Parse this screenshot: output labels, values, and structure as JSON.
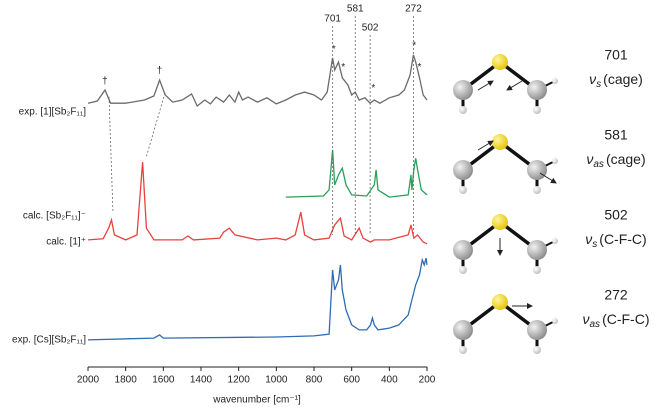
{
  "chart_data": {
    "type": "line",
    "x_label": "wavenumber [cm⁻¹]",
    "xlim": [
      2000,
      200
    ],
    "xticks": [
      2000,
      1800,
      1600,
      1400,
      1200,
      1000,
      800,
      600,
      400,
      200
    ],
    "ylim": [
      0,
      100
    ],
    "series": [
      {
        "name": "exp. [1][Sb₂F₁₁]",
        "color": "#6b6b6b",
        "x": [
          2000,
          1950,
          1910,
          1880,
          1800,
          1700,
          1650,
          1620,
          1590,
          1550,
          1500,
          1450,
          1420,
          1380,
          1350,
          1320,
          1280,
          1250,
          1220,
          1200,
          1180,
          1150,
          1100,
          1050,
          1000,
          950,
          900,
          850,
          800,
          760,
          730,
          701,
          690,
          670,
          650,
          620,
          600,
          581,
          560,
          530,
          502,
          480,
          450,
          400,
          350,
          320,
          290,
          272,
          260,
          240,
          220,
          200
        ],
        "values": [
          73.9,
          74.5,
          77.6,
          73.9,
          73.9,
          74.8,
          75.9,
          80.4,
          76.2,
          74.2,
          74.8,
          76.5,
          73.1,
          74.8,
          73.7,
          75.6,
          74.2,
          76.2,
          74.2,
          77.0,
          74.8,
          75.6,
          74.2,
          75.4,
          73.7,
          74.8,
          76.2,
          77.0,
          76.2,
          74.8,
          77.0,
          86.6,
          83.2,
          85.4,
          81.0,
          79.0,
          76.2,
          77.0,
          74.8,
          75.4,
          73.9,
          74.8,
          73.9,
          75.4,
          76.2,
          77.6,
          81.8,
          87.4,
          85.4,
          81.0,
          76.2,
          74.8
        ]
      },
      {
        "name": "calc. [Sb₂F₁₁]⁻",
        "color": "#2aa05a",
        "x": [
          950,
          750,
          720,
          701,
          690,
          670,
          650,
          630,
          600,
          520,
          480,
          470,
          460,
          400,
          300,
          285,
          280,
          270,
          260,
          250,
          230,
          200
        ],
        "values": [
          47.6,
          47.9,
          49.6,
          60.8,
          51.0,
          53.8,
          55.7,
          51.0,
          48.2,
          47.9,
          51.0,
          55.2,
          49.6,
          47.6,
          48.2,
          53.8,
          49.6,
          55.2,
          58.5,
          55.2,
          49.6,
          48.2
        ]
      },
      {
        "name": "calc. [1]⁺",
        "color": "#e8423f",
        "x": [
          2000,
          1920,
          1890,
          1875,
          1860,
          1800,
          1740,
          1710,
          1690,
          1650,
          1500,
          1470,
          1440,
          1300,
          1280,
          1250,
          1220,
          1100,
          1000,
          950,
          900,
          870,
          850,
          800,
          720,
          690,
          660,
          640,
          600,
          560,
          540,
          500,
          480,
          400,
          300,
          285,
          270,
          250,
          220,
          200
        ],
        "values": [
          35.6,
          35.9,
          38.9,
          41.2,
          37.0,
          35.6,
          37.0,
          57.4,
          38.9,
          35.6,
          35.6,
          36.7,
          35.6,
          36.1,
          37.8,
          38.9,
          37.0,
          35.6,
          36.1,
          35.6,
          37.0,
          43.4,
          37.0,
          35.6,
          36.1,
          39.8,
          41.7,
          36.7,
          35.6,
          38.9,
          36.1,
          35.0,
          35.6,
          35.6,
          37.0,
          39.8,
          36.1,
          37.0,
          35.0,
          34.5
        ]
      },
      {
        "name": "exp. [Cs][Sb₂F₁₁]",
        "color": "#2e6db4",
        "x": [
          2000,
          1650,
          1620,
          1600,
          1000,
          800,
          720,
          701,
          690,
          670,
          660,
          650,
          630,
          600,
          560,
          520,
          500,
          490,
          480,
          460,
          400,
          350,
          300,
          280,
          260,
          240,
          225,
          215,
          205,
          200
        ],
        "values": [
          7.6,
          8.1,
          9.0,
          8.1,
          8.4,
          8.7,
          9.2,
          27.2,
          21.6,
          24.4,
          28.6,
          21.6,
          16.0,
          11.8,
          10.4,
          10.4,
          11.8,
          13.7,
          11.8,
          10.4,
          10.9,
          11.8,
          14.6,
          18.8,
          23.0,
          25.8,
          30.0,
          28.6,
          30.5,
          28.6
        ]
      }
    ],
    "markers": [
      {
        "label": "†",
        "x": 1910,
        "y": 80
      },
      {
        "label": "†",
        "x": 1620,
        "y": 83
      },
      {
        "label": "*",
        "x": 695,
        "y": 89
      },
      {
        "label": "*",
        "x": 645,
        "y": 84
      },
      {
        "label": "*",
        "x": 485,
        "y": 78
      },
      {
        "label": "*",
        "x": 268,
        "y": 90
      },
      {
        "label": "*",
        "x": 240,
        "y": 84
      }
    ],
    "peak_labels": [
      701,
      581,
      502,
      272
    ],
    "modes": [
      {
        "wavenumber": 701,
        "symbol": "ν",
        "sub": "s",
        "desc": "(cage)"
      },
      {
        "wavenumber": 581,
        "symbol": "ν",
        "sub": "as",
        "desc": "(cage)"
      },
      {
        "wavenumber": 502,
        "symbol": "ν",
        "sub": "s",
        "desc": "(C-F-C)"
      },
      {
        "wavenumber": 272,
        "symbol": "ν",
        "sub": "as",
        "desc": "(C-F-C)"
      }
    ]
  }
}
